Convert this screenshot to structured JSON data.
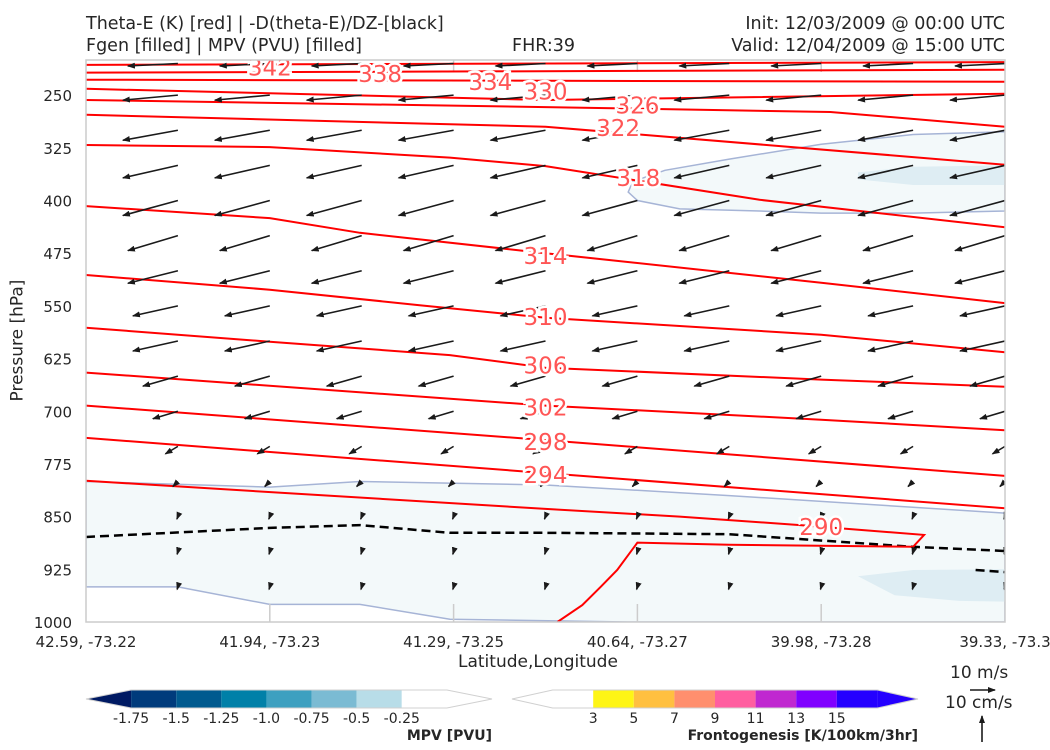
{
  "header": {
    "title_line1": "Theta-E (K) [red] | -D(theta-E)/DZ-[black]",
    "title_line2": "Fgen [filled] | MPV (PVU) [filled]",
    "fhr": "FHR:39",
    "init": "Init: 12/03/2009 @ 00:00 UTC",
    "valid": "Valid: 12/04/2009 @ 15:00 UTC"
  },
  "reference": {
    "horizontal_label": "10 m/s",
    "vertical_label": "10 cm/s"
  },
  "chart_data": {
    "type": "cross-section",
    "xlabel": "Latitude,Longitude",
    "ylabel": "Pressure [hPa]",
    "ylim": [
      1000,
      200
    ],
    "xlim": [
      0,
      100
    ],
    "x_ticks": [
      {
        "pos": 0,
        "label": "42.59, -73.22"
      },
      {
        "pos": 20,
        "label": "41.94, -73.23"
      },
      {
        "pos": 40,
        "label": "41.29, -73.25"
      },
      {
        "pos": 60,
        "label": "40.64, -73.27"
      },
      {
        "pos": 80,
        "label": "39.98, -73.28"
      },
      {
        "pos": 100,
        "label": "39.33, -73.3"
      }
    ],
    "y_ticks": [
      "250",
      "325",
      "400",
      "475",
      "550",
      "625",
      "700",
      "775",
      "850",
      "925",
      "1000"
    ],
    "theta_e_contours": [
      {
        "level": "342",
        "label_at": [
          50,
          211
        ],
        "points": [
          [
            0,
            207
          ],
          [
            100,
            203
          ]
        ]
      },
      {
        "level": "338",
        "label_at": [
          50,
          220
        ],
        "points": [
          [
            0,
            218
          ],
          [
            100,
            214
          ]
        ]
      },
      {
        "level": "334",
        "label_at": [
          50,
          231
        ],
        "points": [
          [
            0,
            228
          ],
          [
            100,
            231
          ]
        ]
      },
      {
        "level": "330",
        "label_at": [
          50,
          245
        ],
        "points": [
          [
            0,
            241
          ],
          [
            50,
            257
          ],
          [
            100,
            248
          ]
        ]
      },
      {
        "level": "326",
        "label_at": [
          60,
          265
        ],
        "points": [
          [
            0,
            257
          ],
          [
            50,
            267
          ],
          [
            81,
            274
          ],
          [
            100,
            295
          ]
        ]
      },
      {
        "level": "322",
        "label_at": [
          57.9,
          297
        ],
        "points": [
          [
            0,
            278
          ],
          [
            50,
            295
          ],
          [
            100,
            349
          ]
        ]
      },
      {
        "level": "318",
        "label_at": [
          60.1,
          368
        ],
        "points": [
          [
            0,
            321
          ],
          [
            20,
            324
          ],
          [
            39.6,
            339
          ],
          [
            50,
            351
          ],
          [
            73.3,
            399
          ],
          [
            100,
            438
          ]
        ]
      },
      {
        "level": "314",
        "label_at": [
          50,
          479
        ],
        "points": [
          [
            0,
            408
          ],
          [
            20,
            425
          ],
          [
            29.8,
            446
          ],
          [
            50,
            475
          ],
          [
            80,
            517
          ],
          [
            100,
            546
          ]
        ]
      },
      {
        "level": "310",
        "label_at": [
          50,
          566
        ],
        "points": [
          [
            0,
            506
          ],
          [
            20,
            527
          ],
          [
            36.3,
            549
          ],
          [
            50,
            567
          ],
          [
            80,
            591
          ],
          [
            100,
            616
          ]
        ]
      },
      {
        "level": "306",
        "label_at": [
          50,
          635
        ],
        "points": [
          [
            0,
            581
          ],
          [
            20,
            601
          ],
          [
            39.6,
            620
          ],
          [
            50,
            638
          ],
          [
            80,
            655
          ],
          [
            100,
            665
          ]
        ]
      },
      {
        "level": "302",
        "label_at": [
          50,
          695
        ],
        "points": [
          [
            0,
            645
          ],
          [
            50,
            692
          ],
          [
            80,
            712
          ],
          [
            100,
            727
          ]
        ]
      },
      {
        "level": "298",
        "label_at": [
          50,
          744
        ],
        "points": [
          [
            0,
            692
          ],
          [
            50,
            741
          ],
          [
            100,
            792
          ]
        ]
      },
      {
        "level": "294",
        "label_at": [
          50,
          791
        ],
        "points": [
          [
            0,
            738
          ],
          [
            50,
            788
          ],
          [
            100,
            838
          ]
        ]
      },
      {
        "level": "290",
        "label_at": [
          80,
          865
        ],
        "points": [
          [
            0,
            799
          ],
          [
            50,
            839
          ],
          [
            64.6,
            850
          ],
          [
            77.7,
            862
          ],
          [
            91.2,
            876
          ],
          [
            90,
            893
          ],
          [
            70,
            890
          ],
          [
            60,
            887
          ],
          [
            57.8,
            926
          ],
          [
            56,
            950
          ],
          [
            54,
            976
          ],
          [
            51.3,
            1000
          ]
        ]
      }
    ],
    "ddz_contours": [
      {
        "style": "dashed",
        "points": [
          [
            0,
            879
          ],
          [
            20,
            866
          ],
          [
            29.8,
            862
          ],
          [
            39.6,
            873
          ],
          [
            50,
            873
          ],
          [
            70,
            875
          ],
          [
            90,
            893
          ],
          [
            100,
            899
          ]
        ]
      },
      {
        "style": "dashed",
        "points": [
          [
            96.8,
            926
          ],
          [
            100,
            929
          ]
        ]
      }
    ],
    "mpv_regions": [
      {
        "range": "-0.25 to 0",
        "color": "#f3f9fa",
        "outline": "#a6b4d6",
        "points": [
          [
            0,
            800
          ],
          [
            20,
            808
          ],
          [
            29.8,
            800
          ],
          [
            50,
            805
          ],
          [
            70,
            820
          ],
          [
            100,
            845
          ],
          [
            100,
            1000
          ],
          [
            59,
            1000
          ],
          [
            39.6,
            996
          ],
          [
            29.8,
            975
          ],
          [
            20,
            975
          ],
          [
            10,
            950
          ],
          [
            0,
            950
          ]
        ]
      },
      {
        "range": "-0.25 to 0",
        "color": "#f3f9fa",
        "outline": "#a6b4d6",
        "points": [
          [
            59.5,
            373
          ],
          [
            63,
            357
          ],
          [
            70,
            341
          ],
          [
            80,
            320
          ],
          [
            90,
            306
          ],
          [
            100,
            302
          ],
          [
            100,
            415
          ],
          [
            90,
            418
          ],
          [
            80,
            418
          ],
          [
            73.3,
            415
          ],
          [
            64.6,
            412
          ],
          [
            60,
            400
          ],
          [
            59,
            388
          ]
        ]
      },
      {
        "range": "-0.5 to -0.25",
        "color": "#deedf3",
        "outline": "",
        "points": [
          [
            84,
            935
          ],
          [
            90,
            926
          ],
          [
            100,
            925
          ],
          [
            100,
            971
          ],
          [
            95,
            970
          ],
          [
            88,
            962
          ]
        ]
      },
      {
        "range": "-0.5 to -0.25",
        "color": "#deedf3",
        "outline": "",
        "points": [
          [
            84,
            360
          ],
          [
            90,
            352
          ],
          [
            100,
            350
          ],
          [
            100,
            378
          ],
          [
            90,
            378
          ],
          [
            84,
            370
          ]
        ]
      }
    ],
    "wind_columns": [
      10,
      20,
      30,
      40,
      50,
      60,
      70,
      80,
      90,
      100
    ],
    "wind_rows": [
      {
        "p": 205,
        "u": -20,
        "w": -1
      },
      {
        "p": 250,
        "u": -22,
        "w": -2
      },
      {
        "p": 300,
        "u": -22,
        "w": -4
      },
      {
        "p": 350,
        "u": -22,
        "w": -5
      },
      {
        "p": 400,
        "u": -22,
        "w": -6
      },
      {
        "p": 450,
        "u": -20,
        "w": -6
      },
      {
        "p": 500,
        "u": -20,
        "w": -5
      },
      {
        "p": 550,
        "u": -18,
        "w": -4
      },
      {
        "p": 600,
        "u": -18,
        "w": -4
      },
      {
        "p": 650,
        "u": -14,
        "w": -4
      },
      {
        "p": 700,
        "u": -10,
        "w": -3
      },
      {
        "p": 750,
        "u": -5,
        "w": -3
      },
      {
        "p": 800,
        "u": -2,
        "w": -2
      },
      {
        "p": 850,
        "u": -0.4,
        "w": -1
      },
      {
        "p": 900,
        "u": -0.3,
        "w": -1
      },
      {
        "p": 950,
        "u": -0.3,
        "w": -1
      }
    ],
    "mpv_colorbar": {
      "label": "MPV [PVU]",
      "ticks": [
        "-1.75",
        "-1.5",
        "-1.25",
        "-1.0",
        "-0.75",
        "-0.5",
        "-0.25"
      ],
      "colors": [
        "#001a63",
        "#003b7c",
        "#005a8f",
        "#0080a8",
        "#3da0c0",
        "#7bbbd3",
        "#b8dde8",
        "#ffffff",
        "#ffffff"
      ]
    },
    "fgen_colorbar": {
      "label": "Frontogenesis [K/100km/3hr]",
      "ticks": [
        "3",
        "5",
        "7",
        "9",
        "11",
        "13",
        "15"
      ],
      "colors": [
        "#ffffff",
        "#ffffff",
        "#fef516",
        "#ffc040",
        "#ff8f6e",
        "#ff5ea0",
        "#c028d0",
        "#8000ff",
        "#2500ff",
        "#2500ff"
      ]
    },
    "colors": {
      "theta_e": "#ff0000",
      "theta_e_label": "#ff5555",
      "ddz": "#000000",
      "wind": "#1a1a1a"
    }
  }
}
